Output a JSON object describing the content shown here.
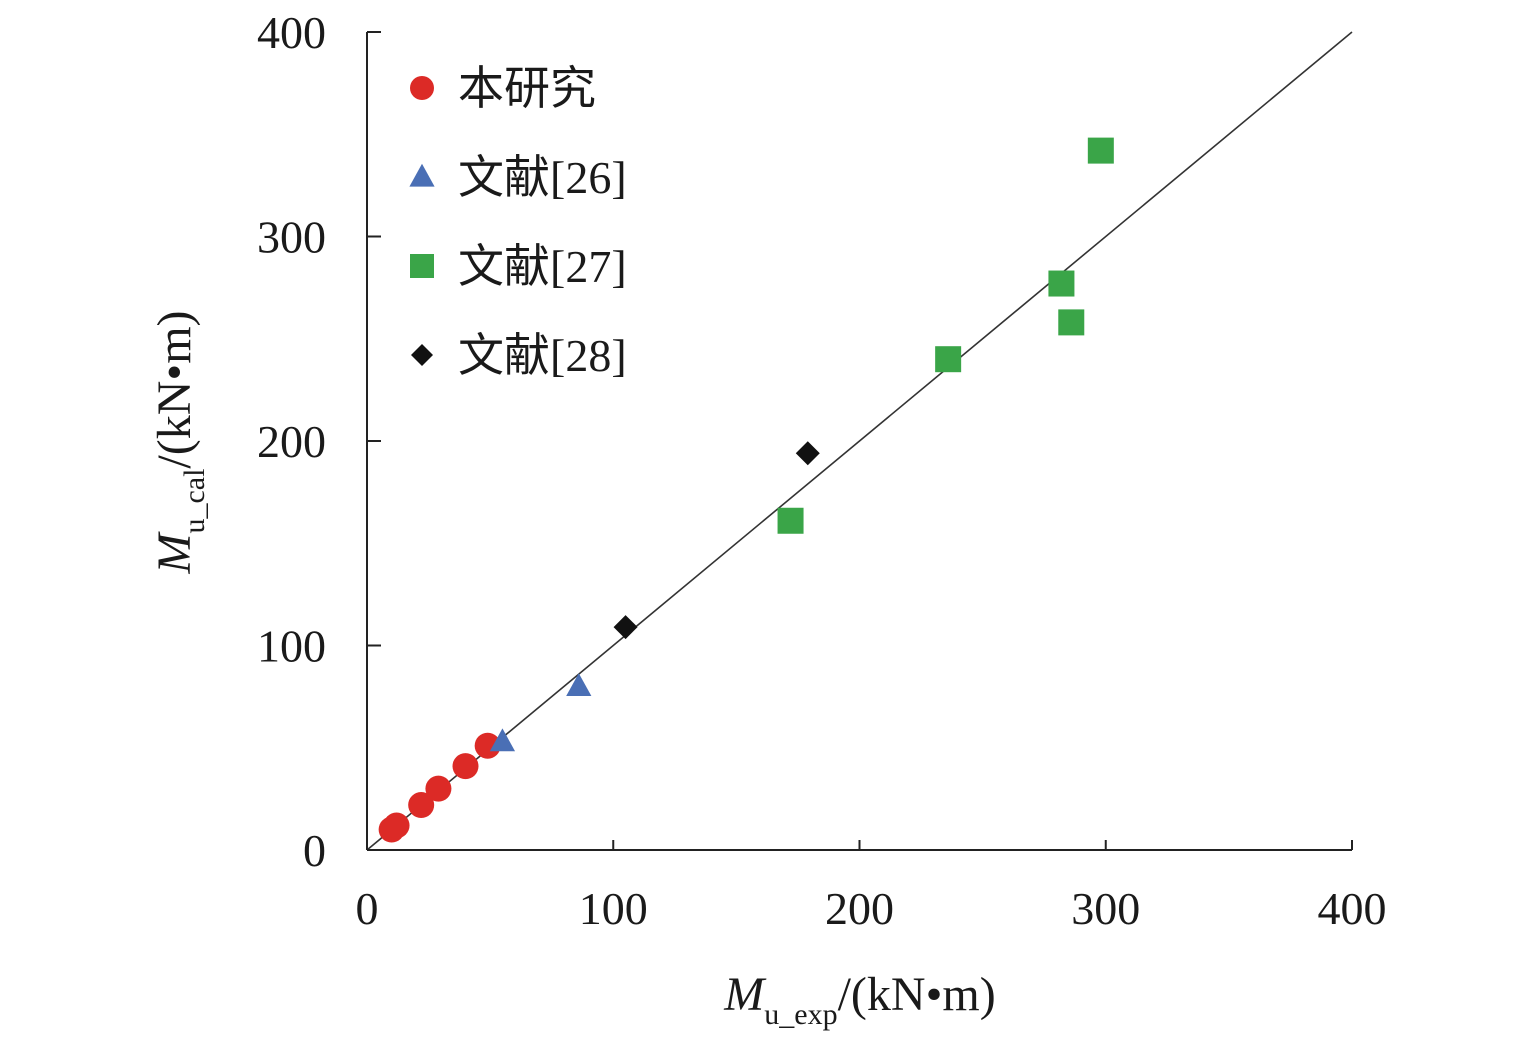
{
  "chart_data": {
    "type": "scatter",
    "title": "",
    "xlabel": {
      "main": "M",
      "sub": "u_exp",
      "unit": "/(kN•m)"
    },
    "ylabel": {
      "main": "M",
      "sub": "u_cal",
      "unit": "/(kN•m)"
    },
    "xlim": [
      0,
      400
    ],
    "ylim": [
      0,
      400
    ],
    "xticks": [
      "0",
      "100",
      "200",
      "300",
      "400"
    ],
    "yticks": [
      "0",
      "100",
      "200",
      "300",
      "400"
    ],
    "reference_line": {
      "from": [
        0,
        0
      ],
      "to": [
        400,
        400
      ]
    },
    "legend_position": "top-left",
    "series": [
      {
        "name": "本研究",
        "marker": "circle",
        "color": "#dc2a26",
        "points": [
          [
            10,
            10
          ],
          [
            12,
            12
          ],
          [
            22,
            22
          ],
          [
            29,
            30
          ],
          [
            40,
            41
          ],
          [
            49,
            51
          ]
        ]
      },
      {
        "name": "文献[26]",
        "marker": "triangle",
        "color": "#4a6fb5",
        "points": [
          [
            55,
            53
          ],
          [
            86,
            80
          ]
        ]
      },
      {
        "name": "文献[27]",
        "marker": "square",
        "color": "#3aa548",
        "points": [
          [
            172,
            161
          ],
          [
            236,
            240
          ],
          [
            282,
            277
          ],
          [
            286,
            258
          ],
          [
            298,
            342
          ]
        ]
      },
      {
        "name": "文献[28]",
        "marker": "diamond",
        "color": "#111111",
        "points": [
          [
            105,
            109
          ],
          [
            179,
            194
          ]
        ]
      }
    ]
  }
}
